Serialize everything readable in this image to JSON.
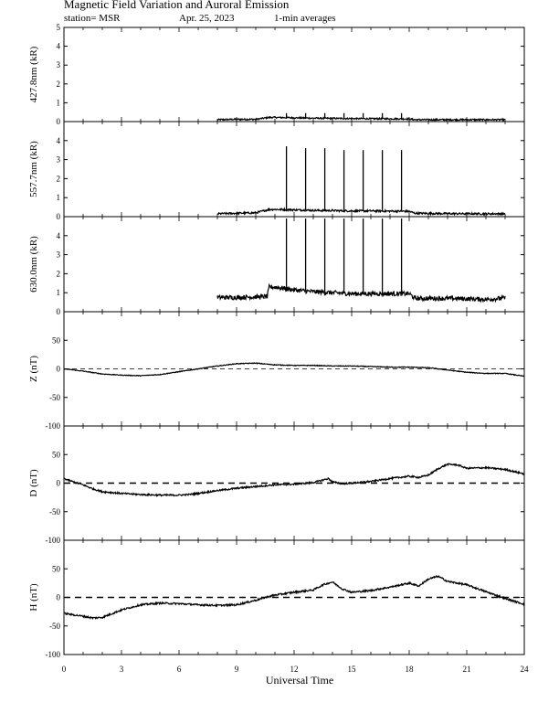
{
  "header": {
    "title": "Magnetic Field Variation and Auroral Emission",
    "station": "station= MSR",
    "date": "Apr. 25, 2023",
    "averaging": "1-min averages"
  },
  "chart_data": {
    "type": "line",
    "xlabel": "Universal Time",
    "xlim": [
      0,
      24
    ],
    "xticks": [
      0,
      3,
      6,
      9,
      12,
      15,
      18,
      21,
      24
    ],
    "panels": [
      {
        "id": "p4278",
        "ylabel": "427.8nm (kR)",
        "ylim": [
          0,
          5
        ],
        "yticks": [
          0,
          1,
          2,
          3,
          4,
          5
        ],
        "x": [
          8.0,
          9.0,
          10.0,
          10.7,
          11.0,
          12.0,
          13.0,
          14.0,
          15.0,
          16.0,
          17.0,
          18.0,
          18.3,
          19.0,
          20.0,
          21.0,
          22.0,
          23.0
        ],
        "y": [
          0.1,
          0.12,
          0.12,
          0.22,
          0.22,
          0.2,
          0.18,
          0.17,
          0.16,
          0.15,
          0.15,
          0.14,
          0.1,
          0.1,
          0.1,
          0.1,
          0.1,
          0.1
        ],
        "noise": 0.04,
        "spikes_x": [
          11.6,
          12.6,
          13.6,
          14.6,
          15.6,
          16.6,
          17.6
        ],
        "spikes_y": [
          0.45,
          0.45,
          0.45,
          0.45,
          0.45,
          0.45,
          0.45
        ],
        "zero_line": false,
        "dashed_zero": false
      },
      {
        "id": "p5577",
        "ylabel": "557.7nm (kR)",
        "ylim": [
          0,
          5
        ],
        "yticks": [
          0,
          1,
          2,
          3,
          4
        ],
        "x": [
          8.0,
          9.0,
          10.0,
          10.7,
          11.0,
          12.0,
          13.0,
          14.0,
          15.0,
          16.0,
          17.0,
          18.0,
          18.3,
          19.0,
          20.0,
          21.0,
          22.0,
          23.0
        ],
        "y": [
          0.15,
          0.18,
          0.2,
          0.38,
          0.38,
          0.36,
          0.33,
          0.32,
          0.3,
          0.3,
          0.29,
          0.28,
          0.18,
          0.17,
          0.16,
          0.15,
          0.15,
          0.15
        ],
        "noise": 0.05,
        "spikes_x": [
          11.6,
          12.6,
          13.6,
          14.6,
          15.6,
          16.6,
          17.6
        ],
        "spikes_y": [
          3.7,
          3.6,
          3.6,
          3.5,
          3.5,
          3.5,
          3.5
        ],
        "zero_line": false,
        "dashed_zero": false
      },
      {
        "id": "p6300",
        "ylabel": "630.0nm (kR)",
        "ylim": [
          0,
          5
        ],
        "yticks": [
          0,
          1,
          2,
          3,
          4
        ],
        "x": [
          8.0,
          9.0,
          10.0,
          10.6,
          10.7,
          11.0,
          12.0,
          13.0,
          14.0,
          15.0,
          16.0,
          17.0,
          18.0,
          18.3,
          19.0,
          20.0,
          21.0,
          22.0,
          23.0
        ],
        "y": [
          0.75,
          0.75,
          0.78,
          0.8,
          1.3,
          1.3,
          1.15,
          1.05,
          1.0,
          0.95,
          0.95,
          0.95,
          0.95,
          0.7,
          0.7,
          0.7,
          0.68,
          0.65,
          0.72
        ],
        "noise": 0.12,
        "spikes_x": [
          11.6,
          12.6,
          13.6,
          14.6,
          15.6,
          16.6,
          17.6
        ],
        "spikes_y": [
          4.9,
          4.9,
          4.9,
          4.9,
          4.9,
          4.9,
          4.9
        ],
        "zero_line": false,
        "dashed_zero": false
      },
      {
        "id": "pZ",
        "ylabel": "Z (nT)",
        "ylim": [
          -100,
          100
        ],
        "yticks": [
          -100,
          -50,
          0,
          50
        ],
        "x": [
          0,
          1,
          2,
          3,
          4,
          5,
          6,
          7,
          8,
          9,
          10,
          11,
          12,
          13,
          14,
          15,
          16,
          17,
          18,
          19,
          20,
          21,
          22,
          23,
          24
        ],
        "y": [
          0,
          -4,
          -9,
          -11,
          -12,
          -10,
          -5,
          0,
          5,
          9,
          10,
          7,
          6,
          6,
          5,
          5,
          4,
          3,
          3,
          2,
          -2,
          -6,
          -8,
          -8,
          -13
        ],
        "noise": 0.6,
        "spikes_x": [],
        "spikes_y": [],
        "zero_line": true,
        "dashed_zero": true
      },
      {
        "id": "pD",
        "ylabel": "D (nT)",
        "ylim": [
          -100,
          100
        ],
        "yticks": [
          -100,
          -50,
          0,
          50
        ],
        "x": [
          0,
          0.5,
          1,
          1.5,
          2,
          3,
          4,
          5,
          6,
          6.5,
          7,
          8,
          9,
          10,
          11,
          12,
          13,
          13.8,
          14,
          14.5,
          15,
          16,
          17,
          18,
          18.5,
          19,
          19.5,
          20,
          20.5,
          21,
          22,
          23,
          24
        ],
        "y": [
          8,
          2,
          -3,
          -10,
          -15,
          -18,
          -20,
          -21,
          -21,
          -20,
          -18,
          -13,
          -9,
          -6,
          -3,
          -2,
          1,
          8,
          2,
          -1,
          0,
          3,
          8,
          12,
          10,
          14,
          25,
          33,
          32,
          26,
          27,
          24,
          16
        ],
        "noise": 1.4,
        "spikes_x": [],
        "spikes_y": [],
        "zero_line": true,
        "dashed_zero": true
      },
      {
        "id": "pH",
        "ylabel": "H (nT)",
        "ylim": [
          -100,
          100
        ],
        "yticks": [
          -100,
          -50,
          0,
          50
        ],
        "x": [
          0,
          1,
          1.5,
          2,
          3,
          4,
          5,
          6,
          7,
          8,
          9,
          10,
          10.5,
          11,
          12,
          13,
          13.5,
          14,
          14.5,
          15,
          16,
          17,
          18,
          18.5,
          19,
          19.5,
          20,
          21,
          22,
          23,
          24
        ],
        "y": [
          -28,
          -33,
          -36,
          -35,
          -22,
          -13,
          -10,
          -11,
          -13,
          -14,
          -13,
          -5,
          0,
          4,
          9,
          13,
          22,
          27,
          15,
          9,
          12,
          18,
          25,
          20,
          32,
          37,
          28,
          22,
          10,
          -2,
          -12
        ],
        "noise": 1.5,
        "spikes_x": [],
        "spikes_y": [],
        "zero_line": true,
        "dashed_zero": true
      }
    ]
  }
}
